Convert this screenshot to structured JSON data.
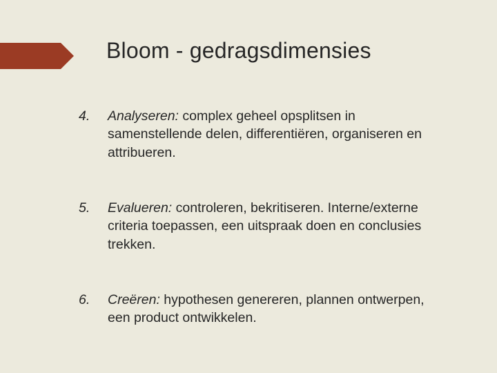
{
  "background_color": "#eceadd",
  "accent_color": "#9b3b24",
  "text_color": "#262626",
  "title": "Bloom - gedragsdimensies",
  "title_fontsize": 32,
  "body_fontsize": 19.5,
  "items": [
    {
      "number": "4.",
      "term": "Analyseren:",
      "text": " complex geheel opsplitsen in samenstellende delen, differentiëren, organiseren en attribueren."
    },
    {
      "number": "5.",
      "term": "Evalueren:",
      "text": " controleren, bekritiseren. Interne/externe criteria toepassen, een uitspraak doen en conclusies trekken."
    },
    {
      "number": "6.",
      "term": "Creëren:",
      "text": " hypothesen genereren, plannen ontwerpen, een product ontwikkelen."
    }
  ]
}
